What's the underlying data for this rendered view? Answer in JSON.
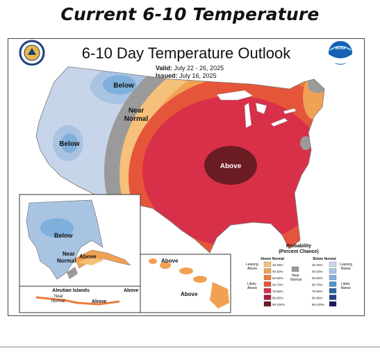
{
  "page_heading": "Current 6-10 Temperature",
  "map": {
    "title": "6-10 Day Temperature Outlook",
    "valid_label": "Valid:",
    "valid_dates": "July 22 - 26, 2025",
    "issued_label": "Issued:",
    "issued_date": "July 16, 2025",
    "noaa_logo_text": "NOAA",
    "region_labels": {
      "west_below_north": "Below",
      "near_normal_1": "Near",
      "near_normal_2": "Normal",
      "west_below_south": "Below",
      "central_above": "Above",
      "alaska_below": "Below",
      "alaska_near_1": "Near",
      "alaska_near_2": "Normal",
      "alaska_above": "Above",
      "aleutian_title": "Aleutian Islands",
      "aleutian_near_1": "Near",
      "aleutian_near_2": "Normal",
      "aleutian_above_1": "Above",
      "aleutian_above_2": "Above",
      "hawaii_above_1": "Above",
      "hawaii_above_2": "Above"
    },
    "legend": {
      "title": "Probability",
      "subtitle": "(Percent Chance)",
      "above_header": "Above Normal",
      "below_header": "Below Normal",
      "leaning_above_1": "Leaning",
      "leaning_above_2": "Above",
      "likely_above_1": "Likely",
      "likely_above_2": "Above",
      "near_1": "Near",
      "near_2": "Normal",
      "leaning_below_1": "Leaning",
      "leaning_below_2": "Below",
      "likely_below_1": "Likely",
      "likely_below_2": "Below",
      "above_bins": [
        {
          "range": "33-40%",
          "color": "#f5c07a"
        },
        {
          "range": "40-50%",
          "color": "#f1a153"
        },
        {
          "range": "50-60%",
          "color": "#ec7c3c"
        },
        {
          "range": "60-70%",
          "color": "#e5553a"
        },
        {
          "range": "70-80%",
          "color": "#d9304a"
        },
        {
          "range": "80-90%",
          "color": "#a61e35"
        },
        {
          "range": "90-100%",
          "color": "#6b1b22"
        }
      ],
      "near_color": "#9a9a9a",
      "below_bins": [
        {
          "range": "33-40%",
          "color": "#c7d5ea"
        },
        {
          "range": "40-50%",
          "color": "#a9c3e2"
        },
        {
          "range": "50-60%",
          "color": "#7fb0dc"
        },
        {
          "range": "60-70%",
          "color": "#4f94c9"
        },
        {
          "range": "70-80%",
          "color": "#2f63a6"
        },
        {
          "range": "80-90%",
          "color": "#2a3f86"
        },
        {
          "range": "90-100%",
          "color": "#1a1a5e"
        }
      ]
    }
  }
}
